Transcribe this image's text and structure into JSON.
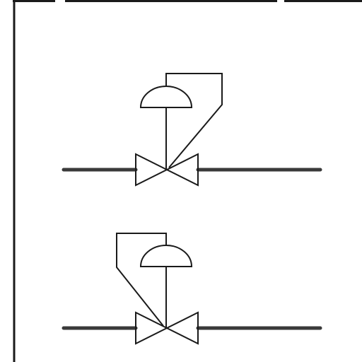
{
  "diagram": {
    "symbols": [
      {
        "id": "upper",
        "type": "self-actuated control valve",
        "actuator": "diaphragm",
        "sensing_line_side": "downstream"
      },
      {
        "id": "lower",
        "type": "self-actuated control valve",
        "actuator": "diaphragm",
        "sensing_line_side": "upstream"
      }
    ]
  },
  "colors": {
    "line": "#1a1a1a",
    "pipe": "#3a3a3a",
    "background": "#ffffff"
  }
}
